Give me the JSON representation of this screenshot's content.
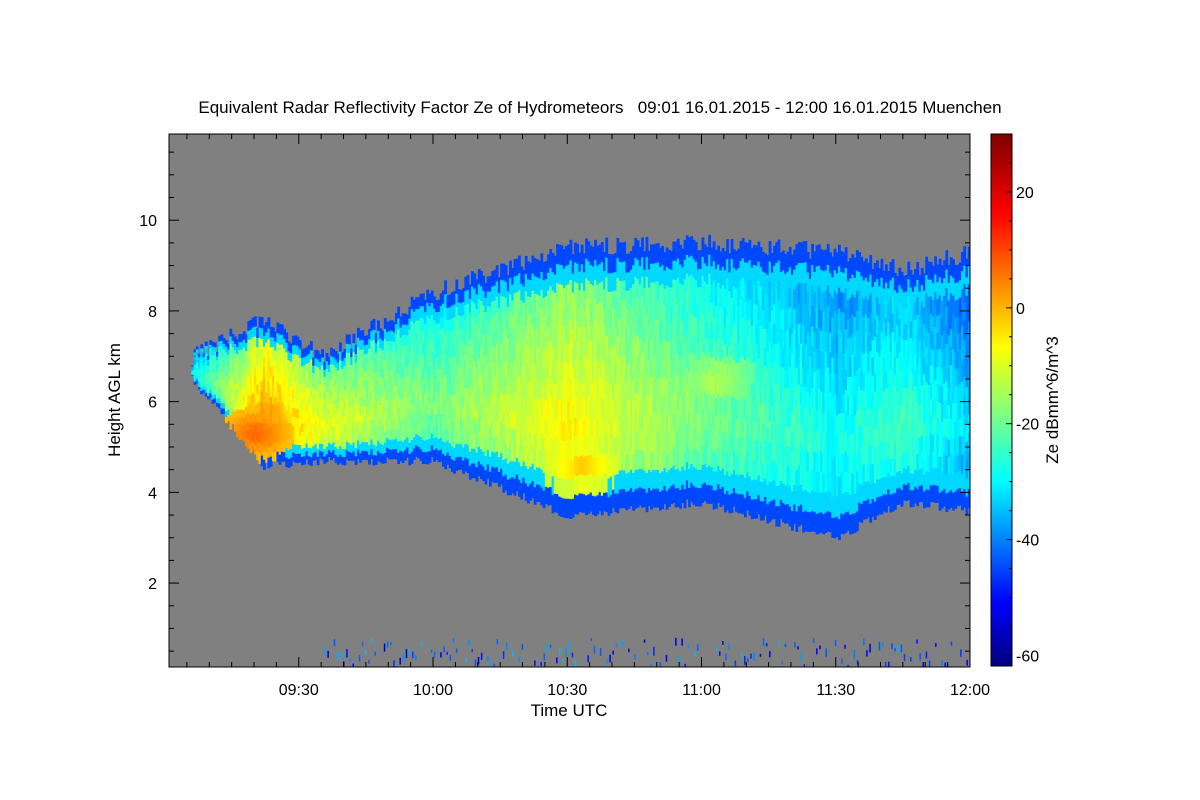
{
  "chart_data": {
    "type": "heatmap",
    "title": "Equivalent Radar Reflectivity Factor Ze of Hydrometeors   09:01 16.01.2015 - 12:00 16.01.2015 Muenchen",
    "xlabel": "Time UTC",
    "ylabel": "Height AGL km",
    "x_ticks": [
      "09:30",
      "10:00",
      "10:30",
      "11:00",
      "11:30",
      "12:00"
    ],
    "x_tick_values_min": [
      570,
      600,
      630,
      660,
      690,
      720
    ],
    "xlim_min": [
      541,
      720
    ],
    "y_ticks": [
      "2",
      "4",
      "6",
      "8",
      "10"
    ],
    "y_tick_values": [
      2,
      4,
      6,
      8,
      10
    ],
    "ylim": [
      0.15,
      11.9
    ],
    "colorbar": {
      "label": "Ze dBmm^6/m^3",
      "ticks": [
        "20",
        "0",
        "-20",
        "-40",
        "-60"
      ],
      "tick_values": [
        20,
        0,
        -20,
        -40,
        -60
      ],
      "range": [
        -62,
        30
      ],
      "colormap": "jet"
    },
    "background_color": "#808080",
    "cloud_layer": {
      "time_min": [
        546,
        562,
        575,
        600,
        630,
        660,
        690,
        705,
        720
      ],
      "top_km": [
        7.0,
        7.8,
        7.0,
        8.4,
        9.4,
        9.5,
        9.3,
        8.9,
        9.3
      ],
      "base_km": [
        6.5,
        4.6,
        4.7,
        4.7,
        3.5,
        3.8,
        3.0,
        3.8,
        3.6
      ],
      "max_ze_dbz": [
        -25,
        5,
        -5,
        -15,
        -3,
        -15,
        -25,
        -20,
        -30
      ],
      "core": [
        {
          "time_min": 560,
          "height_km": 5.3,
          "ze_dbz": 8
        },
        {
          "time_min": 633,
          "height_km": 4.6,
          "ze_dbz": -2
        },
        {
          "time_min": 663,
          "height_km": 6.5,
          "ze_dbz": -12
        }
      ]
    },
    "near_surface_clutter": {
      "height_km": [
        0.2,
        0.8
      ],
      "ze_dbz": -45
    }
  }
}
